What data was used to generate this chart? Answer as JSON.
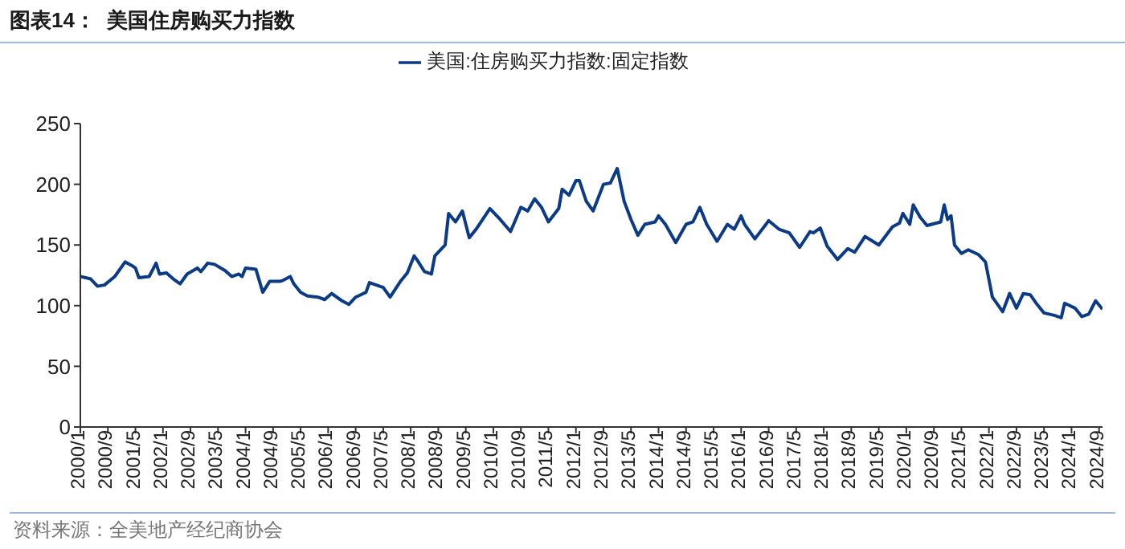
{
  "chart_data": {
    "type": "line",
    "title": "图表14：  美国住房购买力指数",
    "annotations": [
      "资料来源：全美地产经纪商协会"
    ],
    "x": [
      "2000-01",
      "2000-04",
      "2000-06",
      "2000-08",
      "2000-11",
      "2001-02",
      "2001-04",
      "2001-05",
      "2001-06",
      "2001-09",
      "2001-11",
      "2001-12",
      "2002-02",
      "2002-04",
      "2002-06",
      "2002-08",
      "2002-11",
      "2002-12",
      "2003-02",
      "2003-04",
      "2003-07",
      "2003-09",
      "2003-11",
      "2003-12",
      "2004-01",
      "2004-04",
      "2004-06",
      "2004-08",
      "2004-11",
      "2004-12",
      "2005-02",
      "2005-03",
      "2005-05",
      "2005-07",
      "2005-10",
      "2005-12",
      "2006-02",
      "2006-05",
      "2006-07",
      "2006-09",
      "2006-12",
      "2007-01",
      "2007-03",
      "2007-05",
      "2007-07",
      "2007-10",
      "2007-12",
      "2008-02",
      "2008-03",
      "2008-05",
      "2008-07",
      "2008-08",
      "2008-11",
      "2008-12",
      "2009-02",
      "2009-04",
      "2009-06",
      "2009-08",
      "2009-12",
      "2010-03",
      "2010-06",
      "2010-09",
      "2010-11",
      "2011-01",
      "2011-03",
      "2011-05",
      "2011-08",
      "2011-09",
      "2011-11",
      "2012-01",
      "2012-02",
      "2012-04",
      "2012-06",
      "2012-09",
      "2012-11",
      "2013-01",
      "2013-03",
      "2013-05",
      "2013-07",
      "2013-09",
      "2013-12",
      "2014-01",
      "2014-03",
      "2014-06",
      "2014-09",
      "2014-11",
      "2015-01",
      "2015-03",
      "2015-06",
      "2015-09",
      "2015-11",
      "2016-01",
      "2016-02",
      "2016-05",
      "2016-09",
      "2016-12",
      "2017-03",
      "2017-06",
      "2017-09",
      "2017-10",
      "2017-12",
      "2018-02",
      "2018-05",
      "2018-08",
      "2018-10",
      "2019-01",
      "2019-05",
      "2019-09",
      "2019-11",
      "2019-12",
      "2020-02",
      "2020-03",
      "2020-05",
      "2020-07",
      "2020-11",
      "2020-12",
      "2021-01",
      "2021-02",
      "2021-03",
      "2021-05",
      "2021-07",
      "2021-10",
      "2021-12",
      "2022-02",
      "2022-05",
      "2022-07",
      "2022-09",
      "2022-11",
      "2023-01",
      "2023-03",
      "2023-05",
      "2023-08",
      "2023-10",
      "2023-11",
      "2024-02",
      "2024-04",
      "2024-06",
      "2024-08",
      "2024-10"
    ],
    "series": [
      {
        "name": "美国:住房购买力指数:固定指数",
        "color": "#0b3a86",
        "values": [
          124,
          122,
          116,
          117,
          124,
          136,
          133,
          131,
          123,
          124,
          135,
          126,
          127,
          122,
          118,
          126,
          131,
          128,
          135,
          134,
          129,
          124,
          126,
          124,
          131,
          130,
          111,
          120,
          120,
          121,
          124,
          118,
          111,
          108,
          107,
          105,
          110,
          104,
          101,
          107,
          111,
          119,
          117,
          115,
          107,
          120,
          127,
          141,
          137,
          128,
          126,
          141,
          150,
          176,
          169,
          178,
          156,
          163,
          180,
          171,
          161,
          181,
          178,
          188,
          181,
          169,
          180,
          196,
          191,
          203,
          203,
          186,
          178,
          200,
          201,
          213,
          186,
          171,
          158,
          167,
          169,
          174,
          167,
          152,
          167,
          169,
          181,
          167,
          153,
          167,
          163,
          174,
          167,
          155,
          170,
          163,
          160,
          148,
          161,
          160,
          164,
          149,
          138,
          147,
          144,
          157,
          150,
          165,
          168,
          176,
          167,
          183,
          173,
          166,
          169,
          183,
          171,
          174,
          150,
          143,
          146,
          142,
          136,
          107,
          95,
          110,
          98,
          110,
          109,
          101,
          94,
          92,
          90,
          102,
          98,
          91,
          93,
          104,
          97
        ]
      }
    ],
    "xlim": [
      "2000-01",
      "2024-10"
    ],
    "xticks": [
      {
        "value": "2000-01",
        "label": "2000/1"
      },
      {
        "value": "2000-09",
        "label": "2000/9"
      },
      {
        "value": "2001-05",
        "label": "2001/5"
      },
      {
        "value": "2002-01",
        "label": "2002/1"
      },
      {
        "value": "2002-09",
        "label": "2002/9"
      },
      {
        "value": "2003-05",
        "label": "2003/5"
      },
      {
        "value": "2004-01",
        "label": "2004/1"
      },
      {
        "value": "2004-09",
        "label": "2004/9"
      },
      {
        "value": "2005-05",
        "label": "2005/5"
      },
      {
        "value": "2006-01",
        "label": "2006/1"
      },
      {
        "value": "2006-09",
        "label": "2006/9"
      },
      {
        "value": "2007-05",
        "label": "2007/5"
      },
      {
        "value": "2008-01",
        "label": "2008/1"
      },
      {
        "value": "2008-09",
        "label": "2008/9"
      },
      {
        "value": "2009-05",
        "label": "2009/5"
      },
      {
        "value": "2010-01",
        "label": "2010/1"
      },
      {
        "value": "2010-09",
        "label": "2010/9"
      },
      {
        "value": "2011-05",
        "label": "2011/5"
      },
      {
        "value": "2012-01",
        "label": "2012/1"
      },
      {
        "value": "2012-09",
        "label": "2012/9"
      },
      {
        "value": "2013-05",
        "label": "2013/5"
      },
      {
        "value": "2014-01",
        "label": "2014/1"
      },
      {
        "value": "2014-09",
        "label": "2014/9"
      },
      {
        "value": "2015-05",
        "label": "2015/5"
      },
      {
        "value": "2016-01",
        "label": "2016/1"
      },
      {
        "value": "2016-09",
        "label": "2016/9"
      },
      {
        "value": "2017-05",
        "label": "2017/5"
      },
      {
        "value": "2018-01",
        "label": "2018/1"
      },
      {
        "value": "2018-09",
        "label": "2018/9"
      },
      {
        "value": "2019-05",
        "label": "2019/5"
      },
      {
        "value": "2020-01",
        "label": "2020/1"
      },
      {
        "value": "2020-09",
        "label": "2020/9"
      },
      {
        "value": "2021-05",
        "label": "2021/5"
      },
      {
        "value": "2022-01",
        "label": "2022/1"
      },
      {
        "value": "2022-09",
        "label": "2022/9"
      },
      {
        "value": "2023-05",
        "label": "2023/5"
      },
      {
        "value": "2024-01",
        "label": "2024/1"
      },
      {
        "value": "2024-09",
        "label": "2024/9"
      }
    ],
    "ylim": [
      0,
      250
    ],
    "yticks": [
      0,
      50,
      100,
      150,
      200,
      250
    ],
    "legend": "top",
    "marker": "none",
    "line_style": "solid"
  }
}
